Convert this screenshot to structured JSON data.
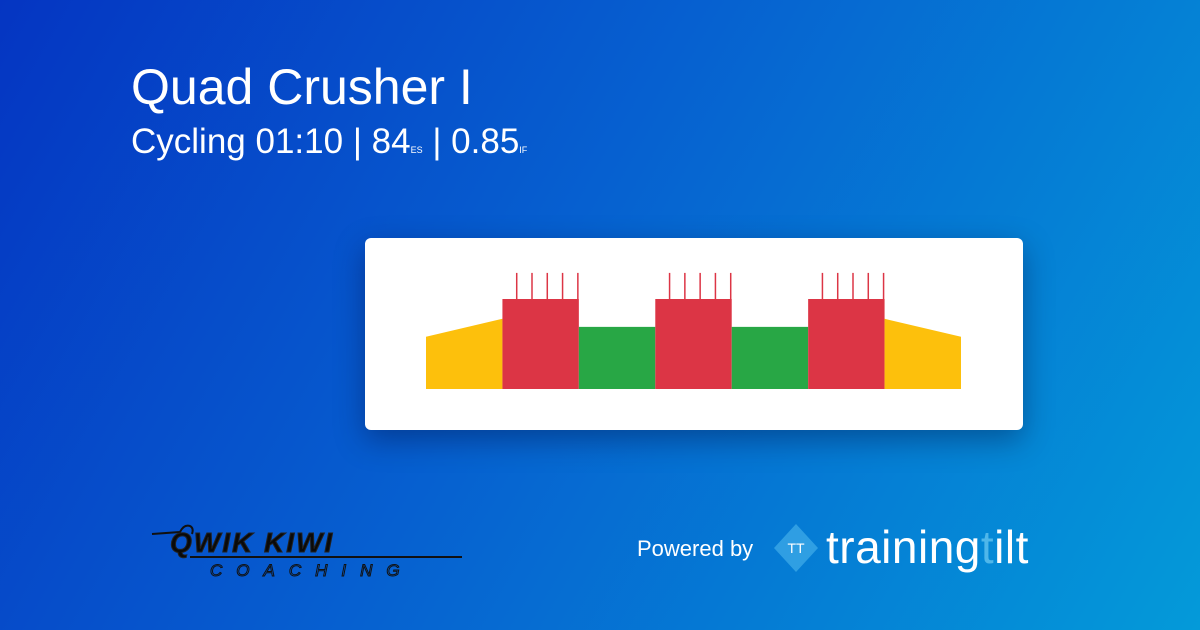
{
  "workout": {
    "title": "Quad Crusher I",
    "sport": "Cycling",
    "duration": "01:10",
    "es_value": "84",
    "es_label": "ES",
    "if_value": "0.85",
    "if_label": "IF",
    "separator": "|"
  },
  "chart_data": {
    "type": "area",
    "title": "",
    "xlabel": "",
    "ylabel": "",
    "x_unit": "minutes",
    "y_unit": "relative intensity (estimated, %FTP)",
    "xlim": [
      0,
      70
    ],
    "segments": [
      {
        "start": 0,
        "end": 10,
        "from": 58,
        "to": 78,
        "zone": "warmup",
        "color": "#fdc00c"
      },
      {
        "start": 10,
        "end": 20,
        "from": 100,
        "to": 100,
        "zone": "hard",
        "color": "#dc3545"
      },
      {
        "start": 20,
        "end": 30,
        "from": 69,
        "to": 69,
        "zone": "recovery",
        "color": "#28a745"
      },
      {
        "start": 30,
        "end": 40,
        "from": 100,
        "to": 100,
        "zone": "hard",
        "color": "#dc3545"
      },
      {
        "start": 40,
        "end": 50,
        "from": 69,
        "to": 69,
        "zone": "recovery",
        "color": "#28a745"
      },
      {
        "start": 50,
        "end": 60,
        "from": 100,
        "to": 100,
        "zone": "hard",
        "color": "#dc3545"
      },
      {
        "start": 60,
        "end": 70,
        "from": 78,
        "to": 58,
        "zone": "cooldown",
        "color": "#fdc00c"
      }
    ],
    "spikes": [
      {
        "x": 12,
        "y": 129
      },
      {
        "x": 14,
        "y": 129
      },
      {
        "x": 16,
        "y": 129
      },
      {
        "x": 18,
        "y": 129
      },
      {
        "x": 20,
        "y": 129
      },
      {
        "x": 32,
        "y": 129
      },
      {
        "x": 34,
        "y": 129
      },
      {
        "x": 36,
        "y": 129
      },
      {
        "x": 38,
        "y": 129
      },
      {
        "x": 40,
        "y": 129
      },
      {
        "x": 52,
        "y": 129
      },
      {
        "x": 54,
        "y": 129
      },
      {
        "x": 56,
        "y": 129
      },
      {
        "x": 58,
        "y": 129
      },
      {
        "x": 60,
        "y": 129
      }
    ],
    "spike_color": "#dc3545",
    "grid": false
  },
  "coach_logo": {
    "line1": "QWIK KIWI",
    "line2": "COACHING"
  },
  "footer": {
    "powered_by": "Powered by",
    "brand_main": "training",
    "brand_faint": "t",
    "brand_end": "ilt",
    "logo_mark": "TT"
  }
}
